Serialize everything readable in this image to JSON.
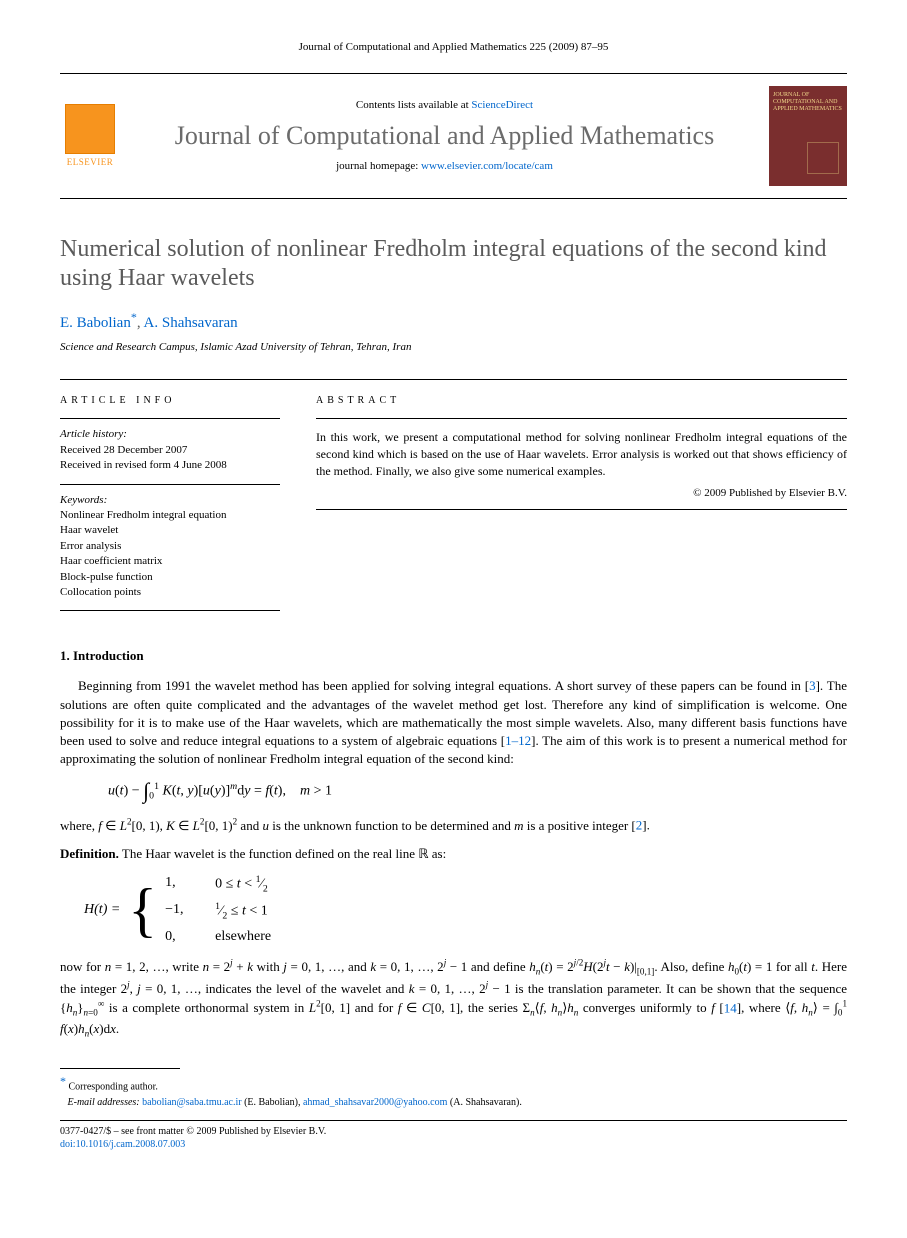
{
  "header": {
    "citation": "Journal of Computational and Applied Mathematics 225 (2009) 87–95"
  },
  "masthead": {
    "publisher": "ELSEVIER",
    "contents_prefix": "Contents lists available at ",
    "contents_link": "ScienceDirect",
    "journal_name": "Journal of Computational and Applied Mathematics",
    "homepage_prefix": "journal homepage: ",
    "homepage_link": "www.elsevier.com/locate/cam",
    "cover_title": "JOURNAL OF COMPUTATIONAL AND APPLIED MATHEMATICS"
  },
  "article": {
    "title": "Numerical solution of nonlinear Fredholm integral equations of the second kind using Haar wavelets",
    "author1": "E. Babolian",
    "author2": "A. Shahsavaran",
    "affiliation": "Science and Research Campus, Islamic Azad University of Tehran, Tehran, Iran"
  },
  "info": {
    "heading": "ARTICLE INFO",
    "history_label": "Article history:",
    "received": "Received 28 December 2007",
    "revised": "Received in revised form 4 June 2008",
    "keywords_label": "Keywords:",
    "kw1": "Nonlinear Fredholm integral equation",
    "kw2": "Haar wavelet",
    "kw3": "Error analysis",
    "kw4": "Haar coefficient matrix",
    "kw5": "Block-pulse function",
    "kw6": "Collocation points"
  },
  "abstract": {
    "heading": "ABSTRACT",
    "text": "In this work, we present a computational method for solving nonlinear Fredholm integral equations of the second kind which is based on the use of Haar wavelets. Error analysis is worked out that shows efficiency of the method. Finally, we also give some numerical examples.",
    "copyright": "© 2009 Published by Elsevier B.V."
  },
  "sections": {
    "intro_heading": "1. Introduction",
    "intro_p1a": "Beginning from 1991 the wavelet method has been applied for solving integral equations. A short survey of these papers can be found in [",
    "intro_ref1": "3",
    "intro_p1b": "]. The solutions are often quite complicated and the advantages of the wavelet method get lost. Therefore any kind of simplification is welcome. One possibility for it is to make use of the Haar wavelets, which are mathematically the most simple wavelets. Also, many different basis functions have been used to solve and reduce integral equations to a system of algebraic equations [",
    "intro_ref2": "1–12",
    "intro_p1c": "]. The aim of this work is to present a numerical method for approximating the solution of nonlinear Fredholm integral equation of the second kind:",
    "equation1": "u(t) − ∫₀¹ K(t, y)[u(y)]ᵐ dy = f(t),    m > 1",
    "intro_p2a": "where, f ∈ L²[0, 1), K ∈ L²[0, 1)² and u is the unknown function to be determined and m is a positive integer [",
    "intro_ref3": "2",
    "intro_p2b": "].",
    "def_label": "Definition.",
    "def_text": " The Haar wavelet is the function defined on the real line ℝ as:",
    "piecewise_lhs": "H(t) =",
    "pw_v1": "1,",
    "pw_c1": "0 ≤ t < ½",
    "pw_v2": "−1,",
    "pw_c2": "½ ≤ t < 1",
    "pw_v3": "0,",
    "pw_c3": "elsewhere",
    "intro_p3a": "now for n = 1, 2, …, write n = 2ʲ + k with j = 0, 1, …, and k = 0, 1, …, 2ʲ − 1 and define hₙ(t) = 2^(j/2) H(2ʲt − k)|[0,1]. Also, define h₀(t) = 1 for all t. Here the integer 2ʲ, j = 0, 1, …, indicates the level of the wavelet and k = 0, 1, …, 2ʲ − 1 is the translation parameter. It can be shown that the sequence {hₙ}ₙ₌₀^∞ is a complete orthonormal system in L²[0, 1] and for f ∈ C[0, 1], the series Σₙ⟨f, hₙ⟩hₙ converges uniformly to f [",
    "intro_ref4": "14",
    "intro_p3b": "], where ⟨f, hₙ⟩ = ∫₀¹ f(x)hₙ(x)dx."
  },
  "footnotes": {
    "corresp": "Corresponding author.",
    "email_label": "E-mail addresses:",
    "email1": "babolian@saba.tmu.ac.ir",
    "email1_name": " (E. Babolian), ",
    "email2": "ahmad_shahsavar2000@yahoo.com",
    "email2_name": " (A. Shahsavaran)."
  },
  "footer": {
    "issn": "0377-0427/$ – see front matter © 2009 Published by Elsevier B.V.",
    "doi_label": "doi:",
    "doi": "10.1016/j.cam.2008.07.003"
  },
  "colors": {
    "link": "#0066cc",
    "elsevier_orange": "#f7941e",
    "cover_bg": "#7a2e2e",
    "title_gray": "#5a5a5a",
    "journal_gray": "#6b6b6b"
  }
}
